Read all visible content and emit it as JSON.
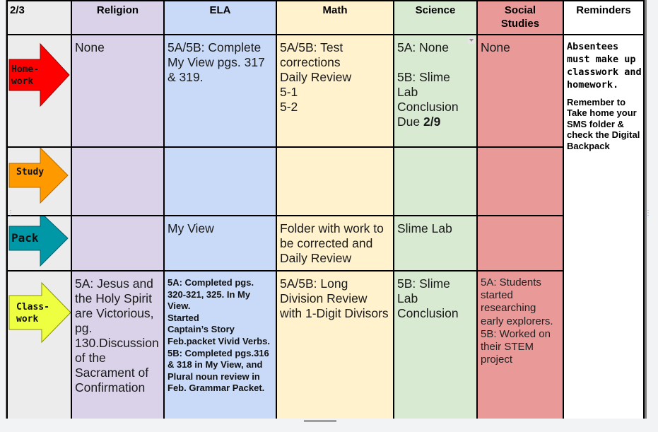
{
  "header": {
    "date": "2/3",
    "religion": "Religion",
    "ela": "ELA",
    "math": "Math",
    "science": "Science",
    "social_studies": "Social\nStudies",
    "reminders": "Reminders"
  },
  "rows": {
    "homework": {
      "label": "Home-\nwork",
      "religion": "None",
      "ela": "5A/5B: Complete My View pgs. 317 & 319.",
      "math": "5A/5B: Test corrections\nDaily Review\n5-1\n5-2",
      "science_a": "5A: None",
      "science_b": "5B: Slime Lab Conclusion Due ",
      "science_due": "2/9",
      "social_studies": "None"
    },
    "study": {
      "label": "Study"
    },
    "pack": {
      "label": "Pack",
      "ela": "My View",
      "math": "Folder with work to be corrected and Daily Review",
      "science": "Slime Lab"
    },
    "classwork": {
      "label": "Class-\nwork",
      "religion": "5A: Jesus and the Holy Spirit are Victorious, pg. 130.Discussion of the Sacrament of Confirmation",
      "ela": "5A: Completed pgs. 320-321, 325. In My View.\nStarted\nCaptain’s Story Feb.packet Vivid Verbs.\n5B: Completed pgs.316 & 318 in My View, and Plural noun review in Feb. Grammar Packet.",
      "math": "5A/5B: Long Division Review with 1-Digit Divisors",
      "science": "5B: Slime Lab Conclusion",
      "social_studies": "5A: Students started researching early explorers.\n5B: Worked on their STEM project"
    }
  },
  "reminders": {
    "line1": "Absentees must make up classwork and homework.",
    "line2": "Remember to Take home your SMS folder & check the Digital Backpack"
  },
  "colors": {
    "homework_arrow": "#ff0000",
    "study_arrow": "#ff9900",
    "pack_arrow": "#0097a7",
    "classwork_arrow": "#eeff41"
  }
}
